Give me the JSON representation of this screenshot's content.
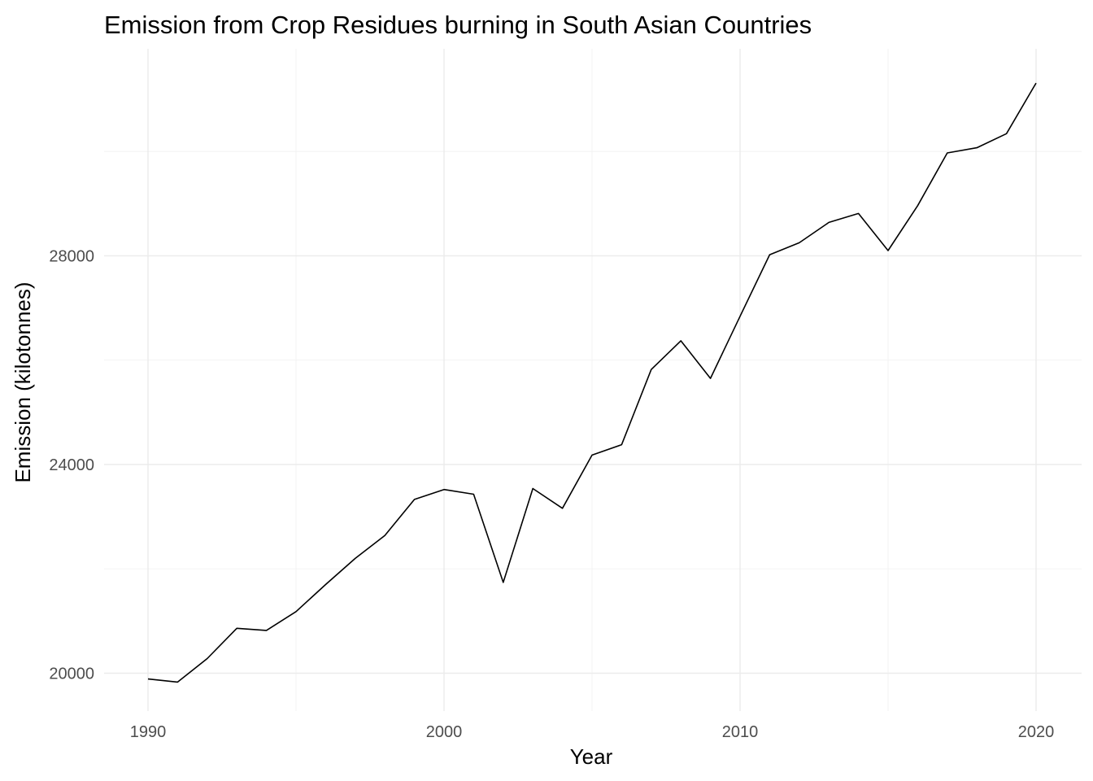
{
  "chart_data": {
    "type": "line",
    "title": "Emission from Crop Residues burning in South Asian Countries",
    "xlabel": "Year",
    "ylabel": "Emission (kilotonnes)",
    "xlim": [
      1989.6,
      2021.5
    ],
    "ylim": [
      19400,
      31760
    ],
    "x_ticks": [
      1990,
      2000,
      2010,
      2020
    ],
    "x_tick_labels": [
      "1990",
      "2000",
      "2010",
      "2020"
    ],
    "x_minor_ticks": [
      1995,
      2005,
      2015
    ],
    "y_ticks": [
      20000,
      24000,
      28000
    ],
    "y_tick_labels": [
      "20000",
      "24000",
      "28000"
    ],
    "y_minor_ticks": [
      22000,
      26000,
      30000
    ],
    "grid": true,
    "line_color": "#000000",
    "series": [
      {
        "x": [
          1990,
          1991,
          1992,
          1993,
          1994,
          1995,
          1996,
          1997,
          1998,
          1999,
          2000,
          2001,
          2002,
          2003,
          2004,
          2005,
          2006,
          2007,
          2008,
          2009,
          2010,
          2011,
          2012,
          2013,
          2014,
          2015,
          2016,
          2017,
          2018,
          2019,
          2020
        ],
        "values": [
          19890,
          19830,
          20280,
          20860,
          20820,
          21180,
          21700,
          22200,
          22640,
          23330,
          23520,
          23430,
          21740,
          23540,
          23160,
          24180,
          24380,
          25820,
          26370,
          25650,
          26840,
          28020,
          28250,
          28640,
          28810,
          28100,
          28960,
          29970,
          30070,
          30340,
          31310
        ]
      }
    ]
  }
}
